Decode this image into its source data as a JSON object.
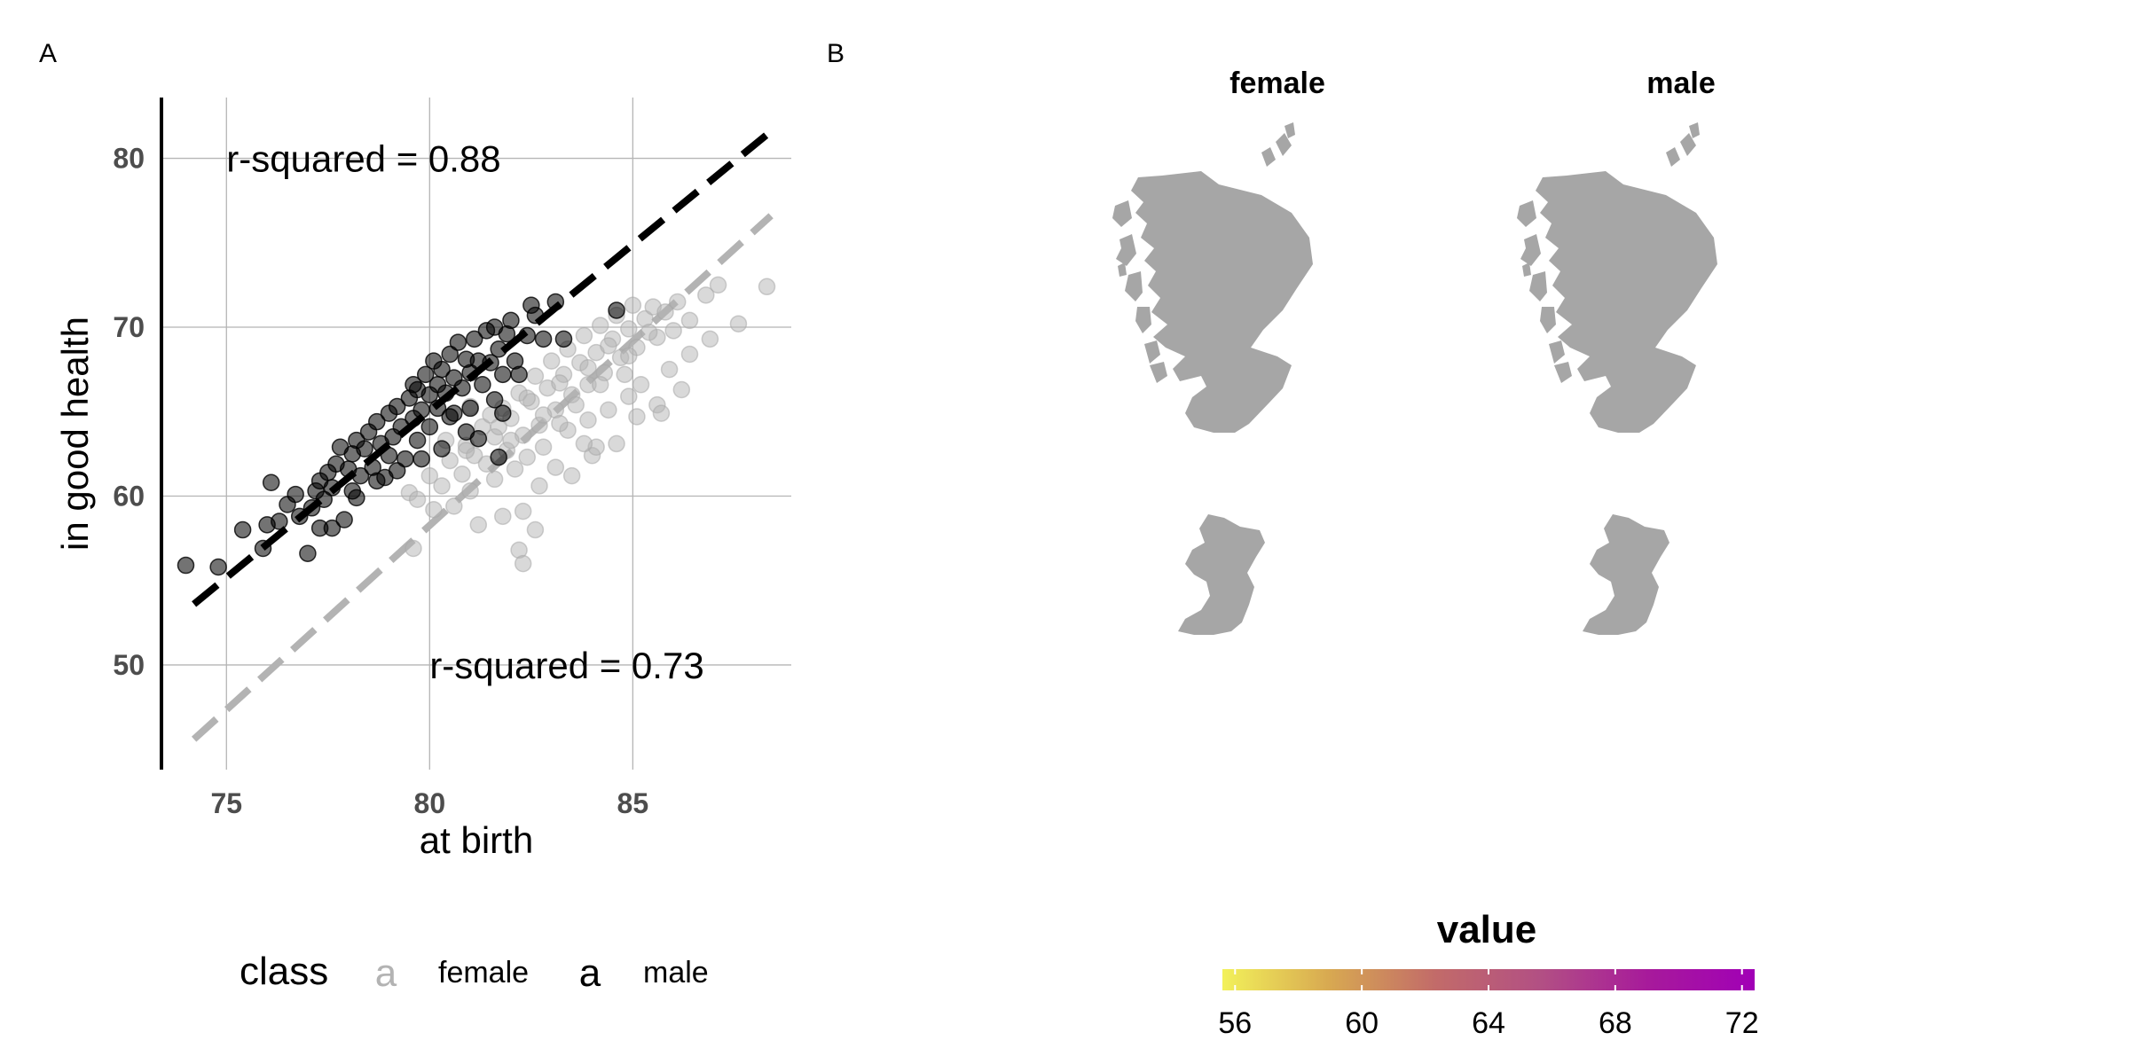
{
  "panels": {
    "a_label": "A",
    "b_label": "B"
  },
  "chart_data": [
    {
      "type": "scatter",
      "xlabel": "at birth",
      "ylabel": "in good health",
      "xlim": [
        73.4,
        88.9
      ],
      "ylim": [
        43.8,
        83.6
      ],
      "xticks": [
        75,
        80,
        85
      ],
      "yticks": [
        50,
        60,
        70,
        80
      ],
      "grid": true,
      "legend": {
        "title": "class",
        "position": "bottom",
        "glyph": "a"
      },
      "series": [
        {
          "name": "female",
          "color": "#b3b3b3",
          "fit": {
            "x": [
              74.2,
              88.4
            ],
            "y": [
              45.6,
              76.6
            ]
          },
          "annotation": {
            "text": "r-squared = 0.73",
            "x": 80,
            "y": 50
          }
        },
        {
          "name": "male",
          "color": "#000000",
          "fit": {
            "x": [
              74.2,
              88.4
            ],
            "y": [
              53.6,
              81.6
            ]
          },
          "annotation": {
            "text": "r-squared = 0.88",
            "x": 75,
            "y": 80
          }
        }
      ],
      "points": {
        "male": [
          [
            74,
            55.9
          ],
          [
            74.8,
            55.8
          ],
          [
            75.4,
            58
          ],
          [
            75.9,
            56.9
          ],
          [
            76,
            58.3
          ],
          [
            76.1,
            60.8
          ],
          [
            76.3,
            58.5
          ],
          [
            76.5,
            59.5
          ],
          [
            76.7,
            60.1
          ],
          [
            76.8,
            58.8
          ],
          [
            77,
            56.6
          ],
          [
            77.1,
            59.3
          ],
          [
            77.2,
            60.3
          ],
          [
            77.3,
            60.9
          ],
          [
            77.4,
            59.8
          ],
          [
            77.5,
            61.4
          ],
          [
            77.6,
            58.1
          ],
          [
            77.6,
            60.5
          ],
          [
            77.7,
            61.9
          ],
          [
            77.8,
            62.9
          ],
          [
            77.9,
            58.6
          ],
          [
            78,
            61.6
          ],
          [
            78.1,
            60.3
          ],
          [
            78.1,
            62.5
          ],
          [
            78.2,
            63.3
          ],
          [
            78.3,
            61.2
          ],
          [
            78.4,
            62.8
          ],
          [
            78.5,
            63.8
          ],
          [
            78.6,
            61.7
          ],
          [
            78.7,
            64.4
          ],
          [
            78.8,
            63.1
          ],
          [
            78.9,
            61.1
          ],
          [
            79,
            64.9
          ],
          [
            79,
            62.4
          ],
          [
            79.1,
            63.5
          ],
          [
            79.2,
            65.3
          ],
          [
            79.3,
            64.1
          ],
          [
            79.4,
            62.2
          ],
          [
            79.5,
            65.8
          ],
          [
            79.6,
            64.6
          ],
          [
            79.7,
            66.3
          ],
          [
            79.7,
            63.3
          ],
          [
            79.8,
            65.1
          ],
          [
            79.9,
            67.2
          ],
          [
            80,
            66
          ],
          [
            80,
            64.1
          ],
          [
            80.1,
            68
          ],
          [
            80.2,
            66.6
          ],
          [
            80.2,
            65.2
          ],
          [
            80.3,
            67.5
          ],
          [
            80.4,
            66.1
          ],
          [
            80.5,
            68.4
          ],
          [
            80.5,
            64.7
          ],
          [
            80.6,
            67
          ],
          [
            80.7,
            69.1
          ],
          [
            80.8,
            66.4
          ],
          [
            80.9,
            68.1
          ],
          [
            81,
            67.3
          ],
          [
            81,
            65.2
          ],
          [
            81.1,
            69.3
          ],
          [
            81.2,
            68
          ],
          [
            81.3,
            66.6
          ],
          [
            81.4,
            69.8
          ],
          [
            81.5,
            67.9
          ],
          [
            81.6,
            70
          ],
          [
            81.7,
            68.7
          ],
          [
            81.8,
            67.2
          ],
          [
            81.9,
            69.6
          ],
          [
            82,
            70.4
          ],
          [
            82.1,
            68
          ],
          [
            82.2,
            67.2
          ],
          [
            82.4,
            69.5
          ],
          [
            82.5,
            71.3
          ],
          [
            82.6,
            70.7
          ],
          [
            82.8,
            69.3
          ],
          [
            83.1,
            71.5
          ],
          [
            83.3,
            69.3
          ],
          [
            81.6,
            65.7
          ],
          [
            81.2,
            63.4
          ],
          [
            80.3,
            62.8
          ],
          [
            79.2,
            61.5
          ],
          [
            78.7,
            60.9
          ],
          [
            79.8,
            62.2
          ],
          [
            80.9,
            63.8
          ],
          [
            81.8,
            64.9
          ],
          [
            84.6,
            71
          ],
          [
            77.3,
            58.1
          ],
          [
            78.2,
            59.9
          ],
          [
            81.7,
            62.3
          ],
          [
            80.6,
            64.9
          ],
          [
            79.6,
            66.6
          ]
        ],
        "female": [
          [
            79.5,
            60.2
          ],
          [
            79.7,
            59.8
          ],
          [
            80,
            61.2
          ],
          [
            80.3,
            60.6
          ],
          [
            80.5,
            62.1
          ],
          [
            80.8,
            61.3
          ],
          [
            80.9,
            63
          ],
          [
            81.1,
            62.4
          ],
          [
            81.3,
            64.1
          ],
          [
            81.4,
            61.9
          ],
          [
            81.6,
            63.5
          ],
          [
            81.8,
            65.2
          ],
          [
            81.9,
            62.7
          ],
          [
            82,
            64.6
          ],
          [
            82.2,
            66.1
          ],
          [
            82.3,
            63.6
          ],
          [
            82.5,
            65.6
          ],
          [
            82.6,
            67.1
          ],
          [
            82.7,
            64.2
          ],
          [
            82.9,
            66.4
          ],
          [
            83,
            68
          ],
          [
            83.1,
            65.1
          ],
          [
            83.3,
            67.2
          ],
          [
            83.4,
            68.7
          ],
          [
            83.5,
            66
          ],
          [
            83.7,
            67.9
          ],
          [
            83.8,
            69.5
          ],
          [
            83.9,
            66.6
          ],
          [
            84.1,
            68.5
          ],
          [
            84.2,
            70.1
          ],
          [
            84.3,
            67.3
          ],
          [
            84.5,
            69.3
          ],
          [
            84.6,
            70.7
          ],
          [
            84.7,
            68.2
          ],
          [
            84.9,
            69.9
          ],
          [
            85,
            71.3
          ],
          [
            85.1,
            68.8
          ],
          [
            85.3,
            70.5
          ],
          [
            85.5,
            71.2
          ],
          [
            85.6,
            69.4
          ],
          [
            85.8,
            70.9
          ],
          [
            86,
            69.8
          ],
          [
            86.1,
            71.5
          ],
          [
            86.4,
            70.4
          ],
          [
            86.8,
            71.9
          ],
          [
            87.1,
            72.5
          ],
          [
            87.6,
            70.2
          ],
          [
            88.3,
            72.4
          ],
          [
            85.6,
            65.4
          ],
          [
            85.7,
            64.9
          ],
          [
            84.6,
            63.1
          ],
          [
            84,
            62.4
          ],
          [
            83.1,
            61.7
          ],
          [
            82.7,
            60.6
          ],
          [
            82.3,
            59.1
          ],
          [
            81.8,
            58.8
          ],
          [
            81.2,
            58.3
          ],
          [
            82.6,
            58
          ],
          [
            82.2,
            56.8
          ],
          [
            82.3,
            56
          ],
          [
            79.6,
            56.9
          ],
          [
            80.6,
            59.4
          ],
          [
            81,
            60.3
          ],
          [
            81.6,
            61
          ],
          [
            82.1,
            61.6
          ],
          [
            82.4,
            62.3
          ],
          [
            82.8,
            62.9
          ],
          [
            83.4,
            63.9
          ],
          [
            83.9,
            64.5
          ],
          [
            84.4,
            65.1
          ],
          [
            84.9,
            65.9
          ],
          [
            83.5,
            61.2
          ],
          [
            84.1,
            62.9
          ],
          [
            85.2,
            66.6
          ],
          [
            85.9,
            67.5
          ],
          [
            86.4,
            68.4
          ],
          [
            86.9,
            69.3
          ],
          [
            81.5,
            64.8
          ],
          [
            82.4,
            65.8
          ],
          [
            83.2,
            66.7
          ],
          [
            83.9,
            67.6
          ],
          [
            84.4,
            68.9
          ],
          [
            84.9,
            68.3
          ],
          [
            85.4,
            69.7
          ],
          [
            80.4,
            63.3
          ],
          [
            81,
            65.3
          ],
          [
            80.1,
            59.2
          ],
          [
            80.9,
            62.7
          ],
          [
            81.7,
            64.1
          ],
          [
            83.2,
            64.3
          ],
          [
            83.6,
            65.4
          ],
          [
            84.2,
            66.6
          ],
          [
            84.8,
            67.2
          ],
          [
            82,
            63.3
          ],
          [
            82.8,
            64.8
          ],
          [
            83.8,
            63.1
          ],
          [
            85.1,
            64.7
          ],
          [
            86.2,
            66.3
          ]
        ]
      }
    },
    {
      "type": "heatmap",
      "facets": [
        "female",
        "male"
      ],
      "colorbar": {
        "title": "value",
        "min": 55.6,
        "max": 72.4,
        "ticks": [
          56,
          60,
          64,
          68,
          72
        ],
        "colors": [
          "#f2f15a",
          "#d8a951",
          "#c26b69",
          "#b24f84",
          "#a71a9b",
          "#a100b6"
        ]
      },
      "no_data_color": "#a6a6a6"
    }
  ]
}
